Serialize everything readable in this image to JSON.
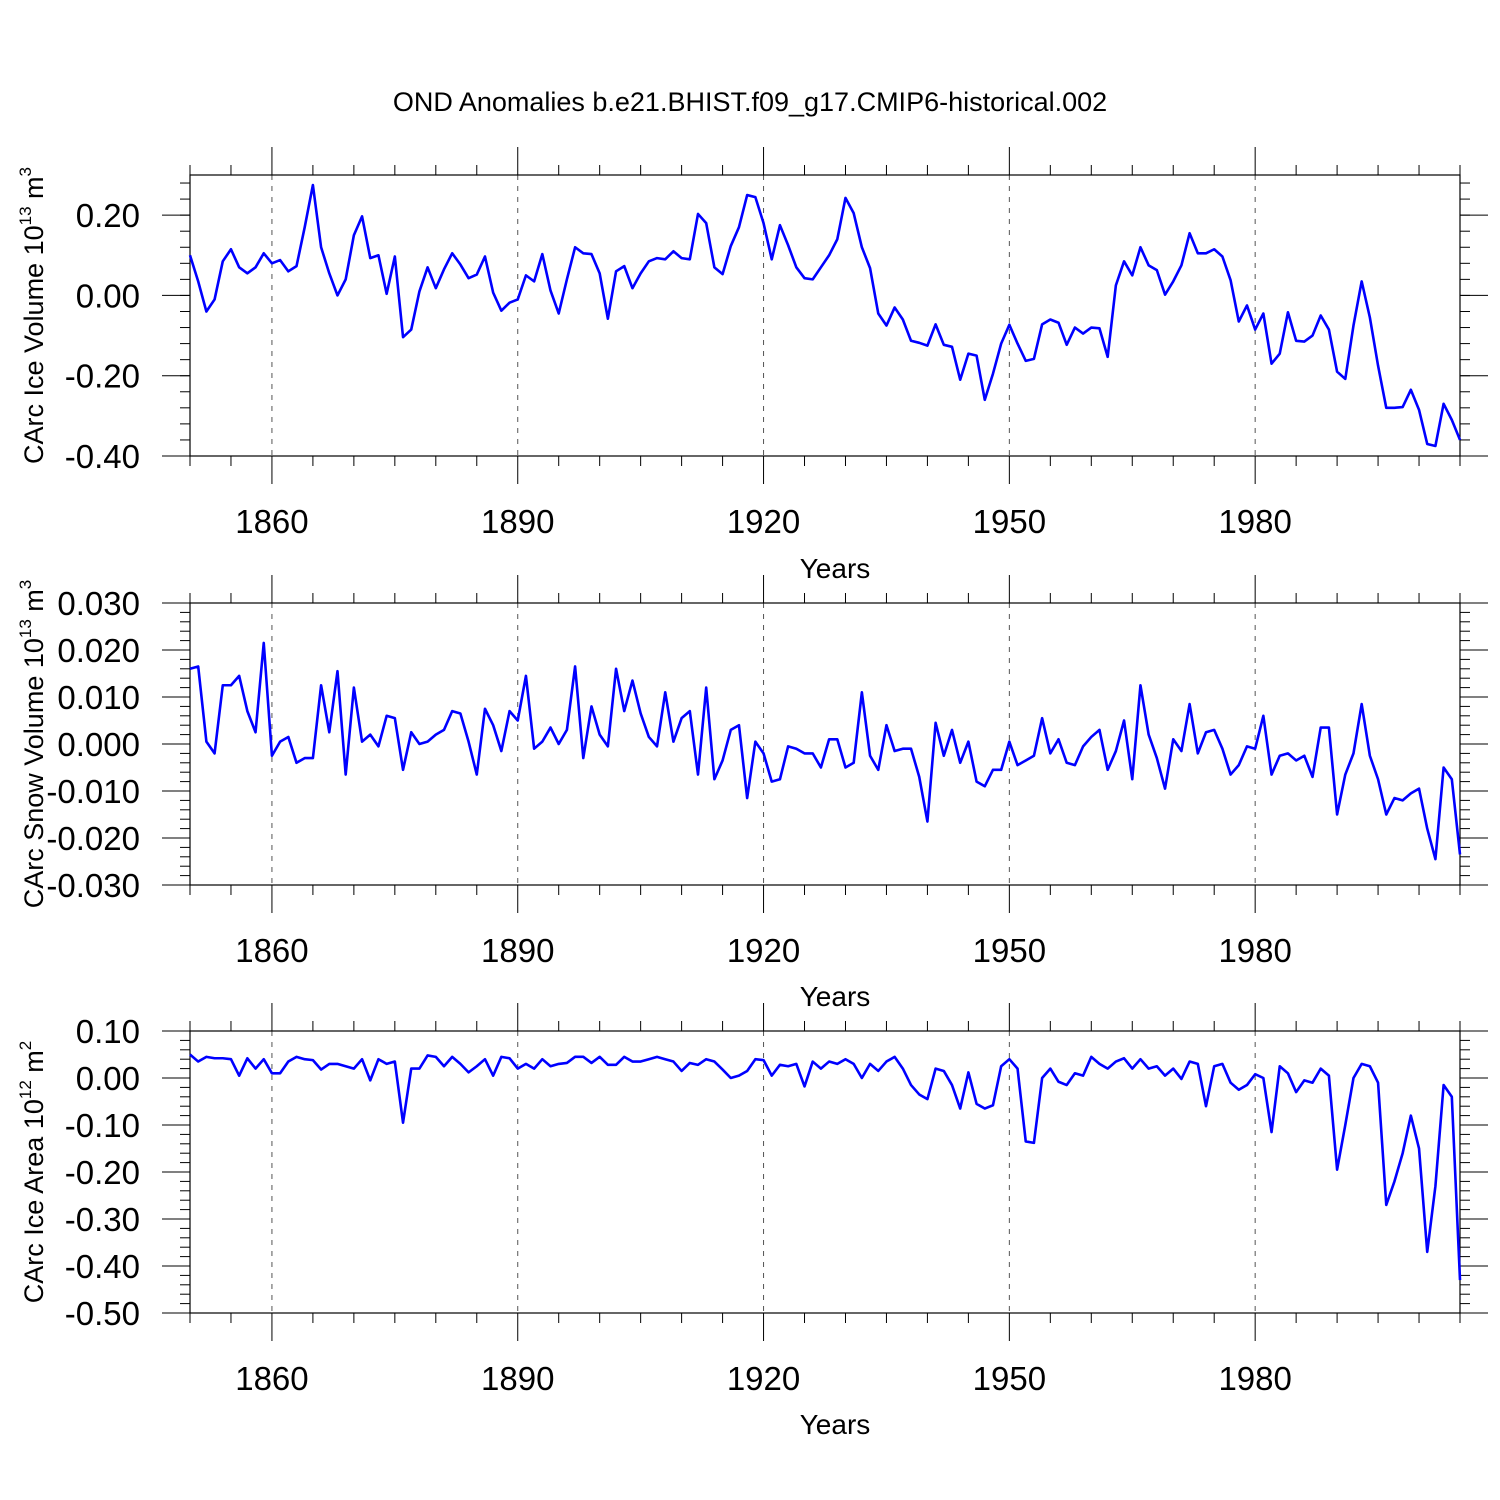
{
  "title": "OND Anomalies b.e21.BHIST.f09_g17.CMIP6-historical.002",
  "colors": {
    "line": "#0000ff",
    "axis": "#000000",
    "grid": "#555555"
  },
  "chart_data": [
    {
      "type": "line",
      "name": "ice-volume",
      "title": "OND Anomalies b.e21.BHIST.f09_g17.CMIP6-historical.002",
      "xlabel": "Years",
      "ylabel_main": "CArc Ice Volume 10",
      "ylabel_exp": "13",
      "ylabel_unit": " m",
      "ylabel_unit_exp": "3",
      "xlim": [
        1850,
        2005
      ],
      "ylim": [
        -0.4,
        0.3
      ],
      "yticks": [
        -0.4,
        -0.2,
        0.0,
        0.2
      ],
      "ytick_labels": [
        "-0.40",
        "-0.20",
        "0.00",
        "0.20"
      ],
      "xticks": [
        1860,
        1890,
        1920,
        1950,
        1980
      ],
      "xtick_labels": [
        "1860",
        "1890",
        "1920",
        "1950",
        "1980"
      ],
      "x_start": 1850,
      "values": [
        0.1,
        0.035,
        -0.04,
        -0.01,
        0.085,
        0.115,
        0.07,
        0.055,
        0.07,
        0.105,
        0.08,
        0.088,
        0.06,
        0.073,
        0.17,
        0.275,
        0.12,
        0.055,
        0.0,
        0.04,
        0.15,
        0.197,
        0.093,
        0.1,
        0.004,
        0.097,
        -0.104,
        -0.085,
        0.01,
        0.07,
        0.018,
        0.065,
        0.105,
        0.077,
        0.043,
        0.052,
        0.097,
        0.007,
        -0.038,
        -0.018,
        -0.01,
        0.05,
        0.035,
        0.103,
        0.012,
        -0.045,
        0.04,
        0.12,
        0.105,
        0.103,
        0.055,
        -0.058,
        0.06,
        0.073,
        0.018,
        0.055,
        0.085,
        0.093,
        0.09,
        0.11,
        0.093,
        0.09,
        0.203,
        0.18,
        0.07,
        0.053,
        0.123,
        0.17,
        0.25,
        0.245,
        0.18,
        0.09,
        0.175,
        0.125,
        0.07,
        0.043,
        0.04,
        0.07,
        0.1,
        0.14,
        0.243,
        0.205,
        0.12,
        0.068,
        -0.045,
        -0.075,
        -0.03,
        -0.06,
        -0.113,
        -0.118,
        -0.125,
        -0.072,
        -0.123,
        -0.128,
        -0.21,
        -0.145,
        -0.15,
        -0.26,
        -0.195,
        -0.12,
        -0.073,
        -0.12,
        -0.163,
        -0.158,
        -0.072,
        -0.06,
        -0.068,
        -0.123,
        -0.08,
        -0.095,
        -0.08,
        -0.082,
        -0.153,
        0.025,
        0.085,
        0.05,
        0.12,
        0.075,
        0.063,
        0.002,
        0.035,
        0.075,
        0.155,
        0.105,
        0.105,
        0.115,
        0.097,
        0.038,
        -0.065,
        -0.025,
        -0.085,
        -0.045,
        -0.17,
        -0.145,
        -0.042,
        -0.113,
        -0.115,
        -0.1,
        -0.05,
        -0.085,
        -0.19,
        -0.208,
        -0.075,
        0.035,
        -0.055,
        -0.175,
        -0.28,
        -0.28,
        -0.278,
        -0.235,
        -0.285,
        -0.37,
        -0.375,
        -0.27,
        -0.31,
        -0.36
      ]
    },
    {
      "type": "line",
      "name": "snow-volume",
      "xlabel": "Years",
      "ylabel_main": "CArc Snow Volume 10",
      "ylabel_exp": "13",
      "ylabel_unit": " m",
      "ylabel_unit_exp": "3",
      "xlim": [
        1850,
        2005
      ],
      "ylim": [
        -0.03,
        0.03
      ],
      "yticks": [
        -0.03,
        -0.02,
        -0.01,
        0.0,
        0.01,
        0.02,
        0.03
      ],
      "ytick_labels": [
        "-0.030",
        "-0.020",
        "-0.010",
        "0.000",
        "0.010",
        "0.020",
        "0.030"
      ],
      "xticks": [
        1860,
        1890,
        1920,
        1950,
        1980
      ],
      "xtick_labels": [
        "1860",
        "1890",
        "1920",
        "1950",
        "1980"
      ],
      "x_start": 1850,
      "values": [
        0.016,
        0.0165,
        0.0005,
        -0.002,
        0.0125,
        0.0125,
        0.0145,
        0.007,
        0.0025,
        0.0215,
        -0.0025,
        0.0005,
        0.0015,
        -0.004,
        -0.003,
        -0.003,
        0.0125,
        0.0025,
        0.0155,
        -0.0065,
        0.012,
        0.0005,
        0.002,
        -0.0005,
        0.006,
        0.0055,
        -0.0055,
        0.0025,
        0.0,
        0.0005,
        0.002,
        0.003,
        0.007,
        0.0065,
        0.0005,
        -0.0065,
        0.0075,
        0.004,
        -0.0015,
        0.007,
        0.005,
        0.0145,
        -0.001,
        0.0005,
        0.0035,
        0.0,
        0.003,
        0.0165,
        -0.003,
        0.008,
        0.002,
        -0.0005,
        0.016,
        0.007,
        0.0135,
        0.0065,
        0.0015,
        -0.0005,
        0.011,
        0.0005,
        0.0055,
        0.007,
        -0.0065,
        0.012,
        -0.0075,
        -0.0035,
        0.003,
        0.004,
        -0.0115,
        0.0005,
        -0.002,
        -0.008,
        -0.0075,
        -0.0005,
        -0.001,
        -0.002,
        -0.002,
        -0.005,
        0.001,
        0.001,
        -0.005,
        -0.004,
        0.011,
        -0.0025,
        -0.0055,
        0.004,
        -0.0015,
        -0.001,
        -0.001,
        -0.007,
        -0.0165,
        0.0045,
        -0.0025,
        0.003,
        -0.004,
        0.0005,
        -0.008,
        -0.009,
        -0.0055,
        -0.0055,
        0.0005,
        -0.0045,
        -0.0035,
        -0.0025,
        0.0055,
        -0.002,
        0.001,
        -0.004,
        -0.0045,
        -0.0005,
        0.0015,
        0.003,
        -0.0055,
        -0.0015,
        0.005,
        -0.0075,
        0.0125,
        0.002,
        -0.003,
        -0.0095,
        0.001,
        -0.0015,
        0.0085,
        -0.002,
        0.0025,
        0.003,
        -0.001,
        -0.0065,
        -0.0045,
        -0.0005,
        -0.001,
        0.006,
        -0.0065,
        -0.0025,
        -0.002,
        -0.0035,
        -0.0025,
        -0.007,
        0.0035,
        0.0035,
        -0.015,
        -0.0065,
        -0.002,
        0.0085,
        -0.0025,
        -0.0075,
        -0.015,
        -0.0115,
        -0.012,
        -0.0105,
        -0.0095,
        -0.018,
        -0.0245,
        -0.005,
        -0.0075,
        -0.0235
      ]
    },
    {
      "type": "line",
      "name": "ice-area",
      "xlabel": "Years",
      "ylabel_main": "CArc Ice Area 10",
      "ylabel_exp": "12",
      "ylabel_unit": " m",
      "ylabel_unit_exp": "2",
      "xlim": [
        1850,
        2005
      ],
      "ylim": [
        -0.5,
        0.1
      ],
      "yticks": [
        -0.5,
        -0.4,
        -0.3,
        -0.2,
        -0.1,
        0.0,
        0.1
      ],
      "ytick_labels": [
        "-0.50",
        "-0.40",
        "-0.30",
        "-0.20",
        "-0.10",
        "0.00",
        "0.10"
      ],
      "xticks": [
        1860,
        1890,
        1920,
        1950,
        1980
      ],
      "xtick_labels": [
        "1860",
        "1890",
        "1920",
        "1950",
        "1980"
      ],
      "x_start": 1850,
      "values": [
        0.05,
        0.035,
        0.045,
        0.042,
        0.042,
        0.04,
        0.005,
        0.042,
        0.02,
        0.04,
        0.01,
        0.01,
        0.035,
        0.045,
        0.04,
        0.038,
        0.018,
        0.03,
        0.03,
        0.025,
        0.02,
        0.04,
        -0.005,
        0.04,
        0.03,
        0.035,
        -0.095,
        0.02,
        0.02,
        0.048,
        0.045,
        0.025,
        0.045,
        0.03,
        0.012,
        0.025,
        0.04,
        0.005,
        0.045,
        0.042,
        0.02,
        0.03,
        0.02,
        0.04,
        0.025,
        0.03,
        0.032,
        0.045,
        0.045,
        0.032,
        0.045,
        0.028,
        0.028,
        0.045,
        0.035,
        0.035,
        0.04,
        0.045,
        0.04,
        0.035,
        0.015,
        0.032,
        0.028,
        0.04,
        0.035,
        0.018,
        0.0,
        0.005,
        0.015,
        0.04,
        0.038,
        0.005,
        0.028,
        0.025,
        0.03,
        -0.018,
        0.035,
        0.02,
        0.035,
        0.03,
        0.04,
        0.03,
        0.0,
        0.03,
        0.015,
        0.035,
        0.045,
        0.02,
        -0.015,
        -0.035,
        -0.045,
        0.02,
        0.015,
        -0.015,
        -0.065,
        0.012,
        -0.055,
        -0.065,
        -0.058,
        0.025,
        0.04,
        0.02,
        -0.135,
        -0.138,
        0.0,
        0.02,
        -0.008,
        -0.015,
        0.01,
        0.005,
        0.045,
        0.03,
        0.02,
        0.035,
        0.042,
        0.02,
        0.04,
        0.02,
        0.025,
        0.005,
        0.02,
        -0.002,
        0.035,
        0.03,
        -0.06,
        0.025,
        0.03,
        -0.01,
        -0.025,
        -0.015,
        0.008,
        0.0,
        -0.115,
        0.025,
        0.01,
        -0.03,
        -0.005,
        -0.01,
        0.02,
        0.005,
        -0.195,
        -0.1,
        0.0,
        0.03,
        0.025,
        -0.01,
        -0.27,
        -0.22,
        -0.16,
        -0.08,
        -0.15,
        -0.37,
        -0.23,
        -0.015,
        -0.04,
        -0.43
      ]
    }
  ]
}
